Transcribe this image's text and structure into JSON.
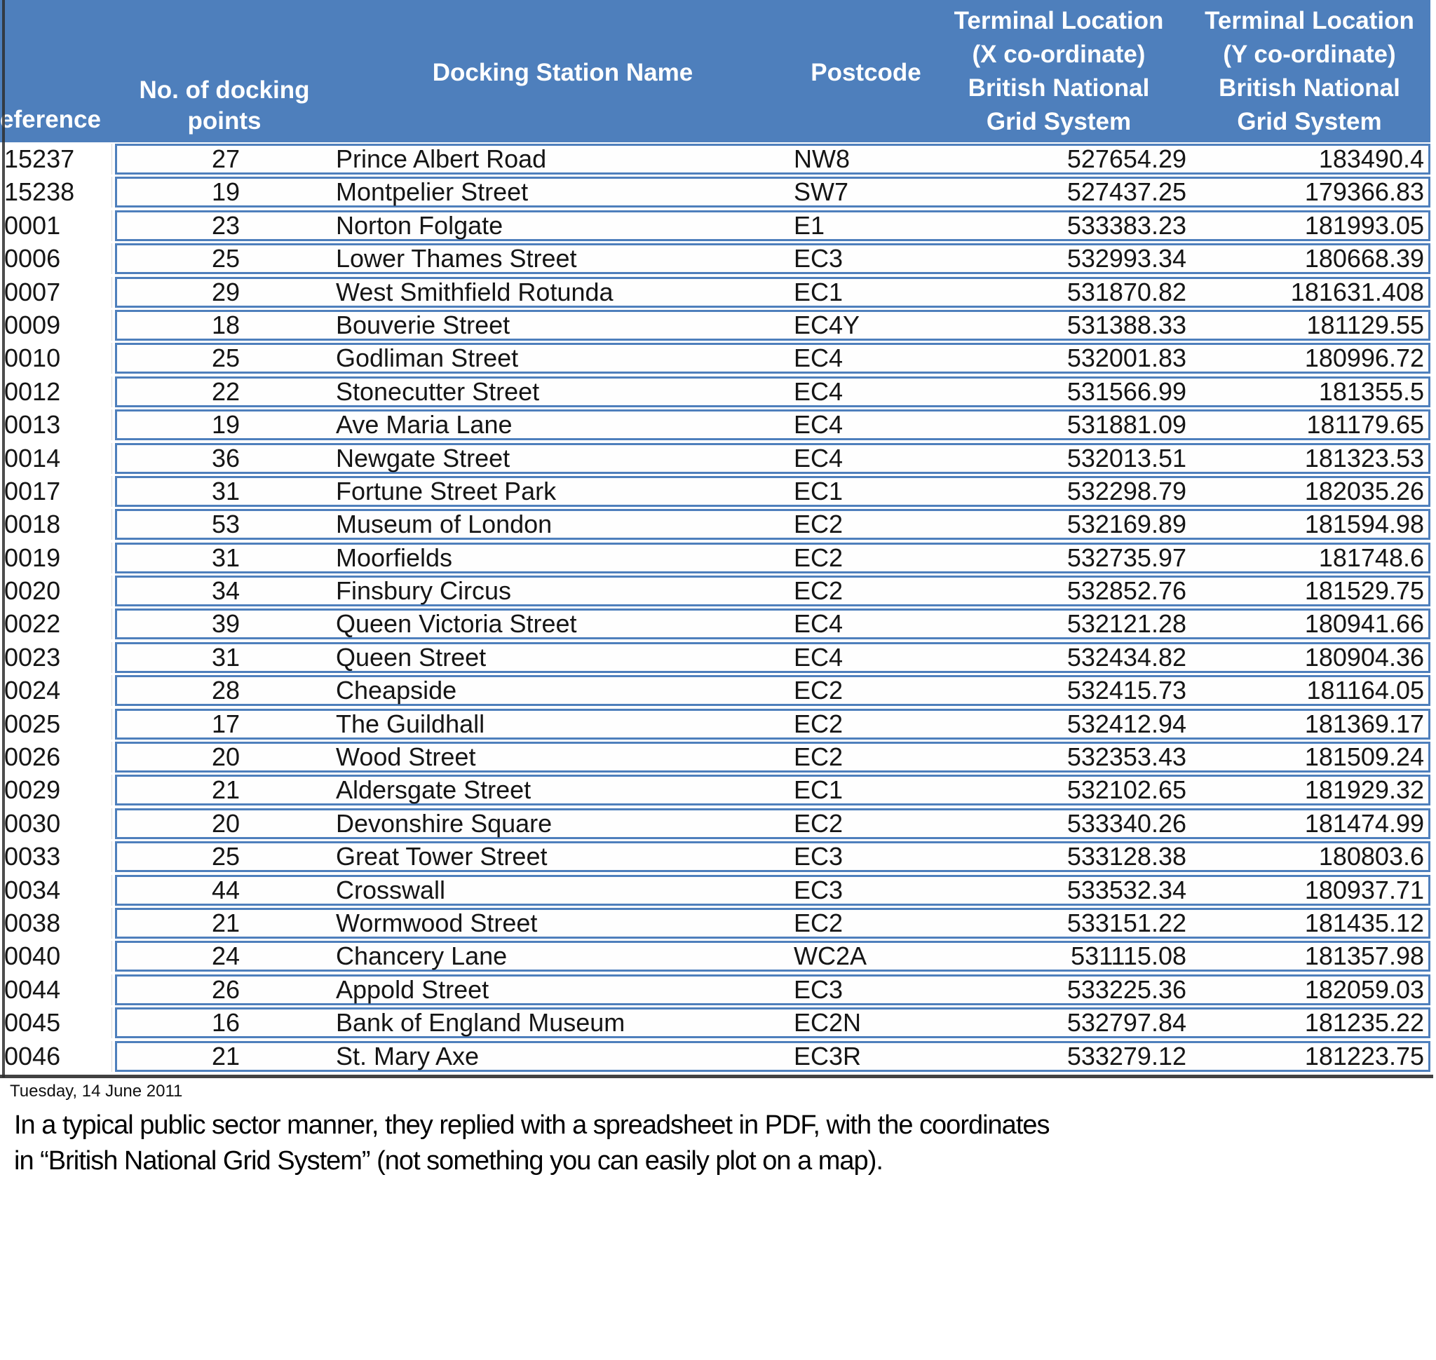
{
  "colors": {
    "header_blue": "#4e7fbc",
    "border_blue": "#4e7fbc",
    "frame_dark": "#2e2e2e",
    "cell_bg": "#fefefe"
  },
  "table": {
    "headers": {
      "reference": "eference",
      "docking_points": "No. of docking\npoints",
      "station_name": "Docking Station Name",
      "postcode": "Postcode",
      "x_coord": "Terminal Location\n(X co-ordinate)\nBritish National\nGrid System",
      "y_coord": "Terminal Location\n(Y co-ordinate)\nBritish National\nGrid System"
    },
    "rows": [
      {
        "ref": "15237",
        "points": "27",
        "name": "Prince Albert Road",
        "postcode": "NW8",
        "x": "527654.29",
        "y": "183490.4"
      },
      {
        "ref": "15238",
        "points": "19",
        "name": "Montpelier Street",
        "postcode": "SW7",
        "x": "527437.25",
        "y": "179366.83"
      },
      {
        "ref": "0001",
        "points": "23",
        "name": "Norton Folgate",
        "postcode": "E1",
        "x": "533383.23",
        "y": "181993.05"
      },
      {
        "ref": "0006",
        "points": "25",
        "name": "Lower Thames Street",
        "postcode": "EC3",
        "x": "532993.34",
        "y": "180668.39"
      },
      {
        "ref": "0007",
        "points": "29",
        "name": "West Smithfield Rotunda",
        "postcode": "EC1",
        "x": "531870.82",
        "y": "181631.408"
      },
      {
        "ref": "0009",
        "points": "18",
        "name": "Bouverie Street",
        "postcode": "EC4Y",
        "x": "531388.33",
        "y": "181129.55"
      },
      {
        "ref": "0010",
        "points": "25",
        "name": "Godliman Street",
        "postcode": "EC4",
        "x": "532001.83",
        "y": "180996.72"
      },
      {
        "ref": "0012",
        "points": "22",
        "name": "Stonecutter Street",
        "postcode": "EC4",
        "x": "531566.99",
        "y": "181355.5"
      },
      {
        "ref": "0013",
        "points": "19",
        "name": "Ave Maria Lane",
        "postcode": "EC4",
        "x": "531881.09",
        "y": "181179.65"
      },
      {
        "ref": "0014",
        "points": "36",
        "name": "Newgate Street",
        "postcode": "EC4",
        "x": "532013.51",
        "y": "181323.53"
      },
      {
        "ref": "0017",
        "points": "31",
        "name": "Fortune Street Park",
        "postcode": "EC1",
        "x": "532298.79",
        "y": "182035.26"
      },
      {
        "ref": "0018",
        "points": "53",
        "name": "Museum of London",
        "postcode": "EC2",
        "x": "532169.89",
        "y": "181594.98"
      },
      {
        "ref": "0019",
        "points": "31",
        "name": "Moorfields",
        "postcode": "EC2",
        "x": "532735.97",
        "y": "181748.6"
      },
      {
        "ref": "0020",
        "points": "34",
        "name": "Finsbury Circus",
        "postcode": "EC2",
        "x": "532852.76",
        "y": "181529.75"
      },
      {
        "ref": "0022",
        "points": "39",
        "name": "Queen Victoria Street",
        "postcode": "EC4",
        "x": "532121.28",
        "y": "180941.66"
      },
      {
        "ref": "0023",
        "points": "31",
        "name": "Queen Street",
        "postcode": "EC4",
        "x": "532434.82",
        "y": "180904.36"
      },
      {
        "ref": "0024",
        "points": "28",
        "name": "Cheapside",
        "postcode": "EC2",
        "x": "532415.73",
        "y": "181164.05"
      },
      {
        "ref": "0025",
        "points": "17",
        "name": "The Guildhall",
        "postcode": "EC2",
        "x": "532412.94",
        "y": "181369.17"
      },
      {
        "ref": "0026",
        "points": "20",
        "name": "Wood Street",
        "postcode": "EC2",
        "x": "532353.43",
        "y": "181509.24"
      },
      {
        "ref": "0029",
        "points": "21",
        "name": "Aldersgate Street",
        "postcode": "EC1",
        "x": "532102.65",
        "y": "181929.32"
      },
      {
        "ref": "0030",
        "points": "20",
        "name": "Devonshire Square",
        "postcode": "EC2",
        "x": "533340.26",
        "y": "181474.99"
      },
      {
        "ref": "0033",
        "points": "25",
        "name": "Great Tower Street",
        "postcode": "EC3",
        "x": "533128.38",
        "y": "180803.6"
      },
      {
        "ref": "0034",
        "points": "44",
        "name": "Crosswall",
        "postcode": "EC3",
        "x": "533532.34",
        "y": "180937.71"
      },
      {
        "ref": "0038",
        "points": "21",
        "name": "Wormwood Street",
        "postcode": "EC2",
        "x": "533151.22",
        "y": "181435.12"
      },
      {
        "ref": "0040",
        "points": "24",
        "name": "Chancery Lane",
        "postcode": "WC2A",
        "x": "531115.08",
        "y": "181357.98"
      },
      {
        "ref": "0044",
        "points": "26",
        "name": "Appold Street",
        "postcode": "EC3",
        "x": "533225.36",
        "y": "182059.03"
      },
      {
        "ref": "0045",
        "points": "16",
        "name": "Bank of England Museum",
        "postcode": "EC2N",
        "x": "532797.84",
        "y": "181235.22"
      },
      {
        "ref": "0046",
        "points": "21",
        "name": "St. Mary Axe",
        "postcode": "EC3R",
        "x": "533279.12",
        "y": "181223.75"
      }
    ]
  },
  "footer": {
    "date": "Tuesday, 14 June 2011",
    "caption_line1": "In a typical public sector manner, they replied with a spreadsheet in PDF, with the coordinates",
    "caption_line2": "in “British National Grid System” (not something you can easily plot on a map)."
  }
}
